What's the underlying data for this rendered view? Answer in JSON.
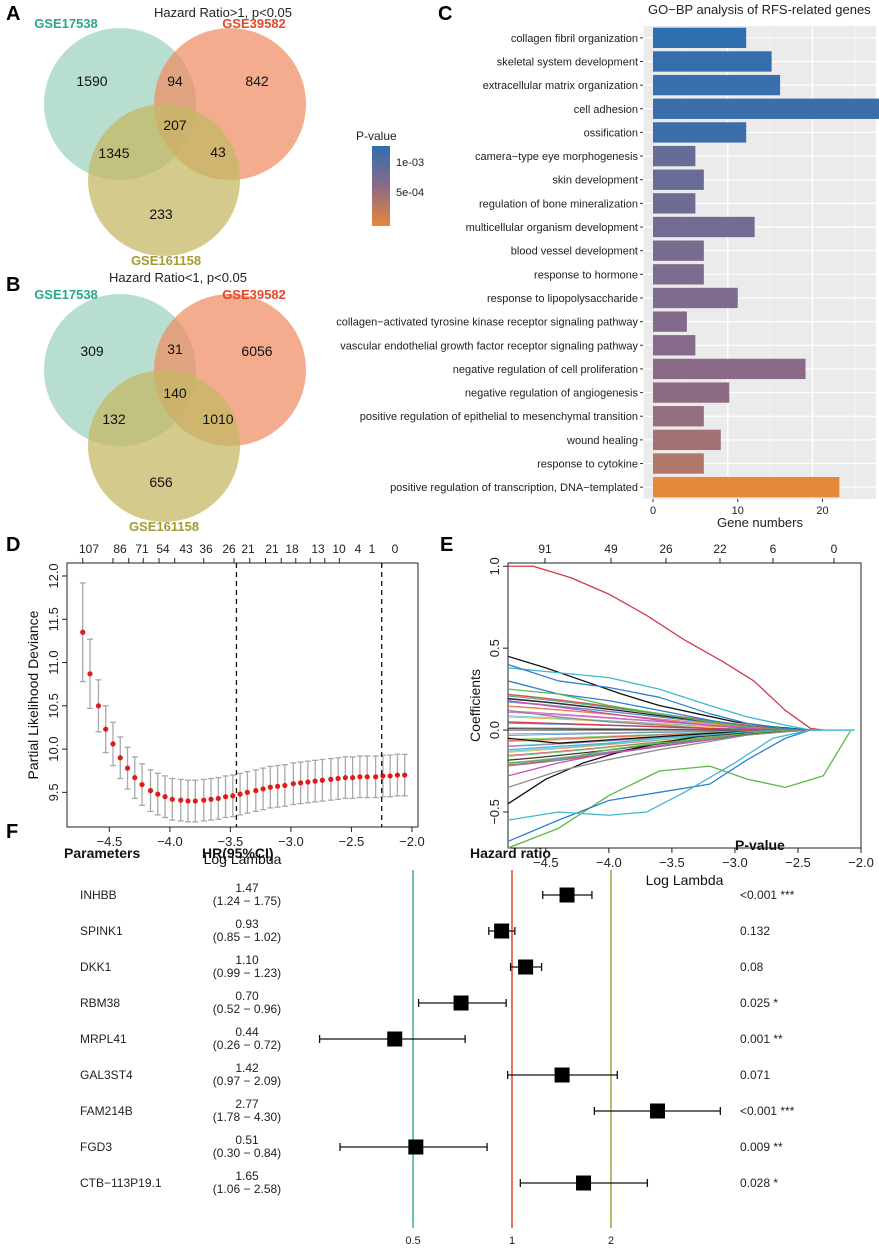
{
  "panel_labels": [
    "A",
    "B",
    "C",
    "D",
    "E",
    "F"
  ],
  "colors": {
    "set1": "#9fd3be",
    "set2": "#ef8c63",
    "set3": "#c4b864",
    "set1_text": "#2ba88a",
    "set2_text": "#e2472a",
    "set3_text": "#a39c30",
    "pval_low": "#2f6fb0",
    "pval_high": "#e6883a",
    "lambda_point": "#e01b1b",
    "forest_green": "#3eae88",
    "forest_red": "#e0472b",
    "forest_olive": "#a7a23a"
  },
  "chart_data": [
    {
      "id": "A",
      "type": "venn",
      "title": "Hazard Ratio>1, p<0.05",
      "sets": [
        "GSE17538",
        "GSE39582",
        "GSE161158"
      ],
      "regions": {
        "only1": "1590",
        "only2": "842",
        "only3": "233",
        "r12": "94",
        "r13": "1345",
        "r23": "43",
        "r123": "207"
      }
    },
    {
      "id": "B",
      "type": "venn",
      "title": "Hazard Ratio<1, p<0.05",
      "sets": [
        "GSE17538",
        "GSE39582",
        "GSE161158"
      ],
      "regions": {
        "only1": "309",
        "only2": "6056",
        "only3": "656",
        "r12": "31",
        "r13": "132",
        "r23": "1010",
        "r123": "140"
      }
    },
    {
      "id": "C",
      "type": "bar",
      "title": "GO−BP analysis of RFS-related genes",
      "xlabel": "Gene numbers",
      "xlim": [
        0,
        27.5
      ],
      "xticks": [
        0,
        10,
        20
      ],
      "legend_title": "P-value",
      "legend_labels": [
        "1e-03",
        "5e-04"
      ],
      "categories": [
        "collagen fibril organization",
        "skeletal system development",
        "extracellular matrix organization",
        "cell adhesion",
        "ossification",
        "camera−type eye morphogenesis",
        "skin development",
        "regulation of bone mineralization",
        "multicellular organism development",
        "blood vessel development",
        "response to hormone",
        "response to lipopolysaccharide",
        "collagen−activated tyrosine kinase receptor signaling pathway",
        "vascular endothelial growth factor receptor signaling pathway",
        "negative regulation of cell proliferation",
        "negative regulation of angiogenesis",
        "positive regulation of epithelial to mesenchymal transition",
        "wound healing",
        "response to cytokine",
        "positive regulation of transcription, DNA−templated"
      ],
      "values": [
        11,
        14,
        15,
        27,
        11,
        5,
        6,
        5,
        12,
        6,
        6,
        10,
        4,
        5,
        18,
        9,
        6,
        8,
        6,
        22
      ],
      "pvalue_color_t": [
        0.0,
        0.02,
        0.05,
        0.06,
        0.08,
        0.3,
        0.32,
        0.35,
        0.38,
        0.4,
        0.42,
        0.44,
        0.46,
        0.48,
        0.5,
        0.52,
        0.56,
        0.62,
        0.7,
        1.0
      ]
    },
    {
      "id": "D",
      "type": "scatter",
      "xlabel": "Log Lambda",
      "ylabel": "Partial Likelihood Deviance",
      "xlim": [
        -4.85,
        -1.95
      ],
      "ylim": [
        9.1,
        12.15
      ],
      "xticks": [
        -4.5,
        -4.0,
        -3.5,
        -3.0,
        -2.5,
        -2.0
      ],
      "xtick_labels": [
        "−4.5",
        "−4.0",
        "−3.5",
        "−3.0",
        "−2.5",
        "−2.0"
      ],
      "yticks": [
        9.5,
        10.0,
        10.5,
        11.0,
        11.5,
        12.0
      ],
      "ytick_labels": [
        "9.5",
        "10.0",
        "10.5",
        "11.0",
        "11.5",
        "12.0"
      ],
      "top_ticks": [
        -4.72,
        -4.47,
        -4.35,
        -4.23,
        -4.1,
        -3.97,
        -3.85,
        -3.72,
        -3.58,
        -3.45,
        -3.33,
        -3.21,
        -3.09,
        -2.97,
        -2.85,
        -2.73,
        -2.61,
        -2.49,
        -2.37,
        -2.25,
        -2.13,
        -2.06
      ],
      "top_positions": [
        -4.72,
        -4.47,
        -4.23,
        -3.97,
        -3.72,
        -3.47,
        -3.21,
        -2.97,
        -2.73,
        -2.49,
        -2.25,
        -2.06
      ],
      "top_labels": [
        "107",
        "86",
        "71",
        "54",
        "43",
        "36",
        "26",
        "21",
        "21",
        "18",
        "13",
        "10",
        "4",
        "1",
        "0"
      ],
      "top_label_x": [
        -4.72,
        -4.47,
        -4.34,
        -4.22,
        -4.09,
        -3.96,
        -3.72,
        -3.47,
        -3.34,
        -3.21,
        -3.08,
        -2.96,
        -2.84,
        -2.72,
        -2.6
      ],
      "vlines": [
        -3.45,
        -2.25
      ],
      "x": [
        -4.72,
        -4.66,
        -4.59,
        -4.53,
        -4.47,
        -4.41,
        -4.35,
        -4.29,
        -4.23,
        -4.16,
        -4.1,
        -4.04,
        -3.98,
        -3.91,
        -3.85,
        -3.79,
        -3.72,
        -3.66,
        -3.6,
        -3.54,
        -3.48,
        -3.42,
        -3.36,
        -3.29,
        -3.23,
        -3.17,
        -3.11,
        -3.05,
        -2.98,
        -2.92,
        -2.86,
        -2.8,
        -2.74,
        -2.67,
        -2.61,
        -2.55,
        -2.49,
        -2.43,
        -2.37,
        -2.3,
        -2.24,
        -2.18,
        -2.12,
        -2.06
      ],
      "y": [
        11.35,
        10.87,
        10.5,
        10.23,
        10.06,
        9.9,
        9.78,
        9.67,
        9.59,
        9.52,
        9.48,
        9.45,
        9.42,
        9.41,
        9.4,
        9.4,
        9.41,
        9.42,
        9.43,
        9.45,
        9.46,
        9.48,
        9.5,
        9.52,
        9.54,
        9.56,
        9.57,
        9.58,
        9.6,
        9.61,
        9.62,
        9.63,
        9.64,
        9.65,
        9.66,
        9.67,
        9.67,
        9.68,
        9.68,
        9.68,
        9.69,
        9.69,
        9.7,
        9.7
      ],
      "err": [
        0.57,
        0.4,
        0.3,
        0.27,
        0.25,
        0.24,
        0.24,
        0.24,
        0.24,
        0.24,
        0.24,
        0.24,
        0.24,
        0.24,
        0.24,
        0.24,
        0.24,
        0.24,
        0.24,
        0.24,
        0.24,
        0.24,
        0.24,
        0.24,
        0.24,
        0.24,
        0.24,
        0.24,
        0.24,
        0.24,
        0.24,
        0.24,
        0.24,
        0.24,
        0.24,
        0.24,
        0.24,
        0.24,
        0.24,
        0.24,
        0.24,
        0.24,
        0.24,
        0.24
      ]
    },
    {
      "id": "E",
      "type": "line",
      "xlabel": "Log Lambda",
      "ylabel": "Coefficients",
      "xlim": [
        -4.8,
        -2.0
      ],
      "ylim": [
        -0.72,
        1.02
      ],
      "xticks": [
        -4.5,
        -4.0,
        -3.5,
        -3.0,
        -2.5,
        -2.0
      ],
      "xtick_labels": [
        "−4.5",
        "−4.0",
        "−3.5",
        "−3.0",
        "−2.5",
        "−2.0"
      ],
      "yticks": [
        -0.5,
        0.0,
        0.5,
        1.0
      ],
      "ytick_labels": [
        "−0.5",
        "0.0",
        "0.5",
        "1.0"
      ],
      "top_positions": [
        -4.35,
        -3.95,
        -3.5,
        -3.08,
        -2.65,
        -2.3
      ],
      "top_labels": [
        "91",
        "49",
        "26",
        "22",
        "6",
        "0"
      ],
      "series": [
        {
          "name": "path-red",
          "color": "#d33a4a",
          "x": [
            -4.8,
            -4.6,
            -4.3,
            -4.0,
            -3.7,
            -3.4,
            -3.1,
            -2.85,
            -2.6,
            -2.4,
            -2.3
          ],
          "y": [
            1.0,
            1.0,
            0.93,
            0.83,
            0.7,
            0.55,
            0.42,
            0.3,
            0.12,
            0.01,
            0.0
          ]
        },
        {
          "name": "path-green-long",
          "color": "#5cb84a",
          "x": [
            -4.8,
            -4.4,
            -4.0,
            -3.6,
            -3.2,
            -2.9,
            -2.6,
            -2.3,
            -2.08
          ],
          "y": [
            -0.72,
            -0.6,
            -0.4,
            -0.25,
            -0.22,
            -0.3,
            -0.35,
            -0.28,
            0.0
          ]
        },
        {
          "name": "path-blue-1",
          "color": "#2e7fd0",
          "x": [
            -4.8,
            -4.4,
            -4.0,
            -3.6,
            -3.2,
            -2.9,
            -2.6,
            -2.4
          ],
          "y": [
            -0.68,
            -0.55,
            -0.43,
            -0.38,
            -0.33,
            -0.18,
            -0.05,
            0.0
          ]
        },
        {
          "name": "path-cyan-1",
          "color": "#3fb9cf",
          "x": [
            -4.8,
            -4.4,
            -4.0,
            -3.7,
            -3.4,
            -3.0,
            -2.7,
            -2.4
          ],
          "y": [
            -0.55,
            -0.5,
            -0.52,
            -0.5,
            -0.38,
            -0.2,
            -0.05,
            0.0
          ]
        },
        {
          "name": "path-black-1",
          "color": "#111111",
          "x": [
            -4.8,
            -4.5,
            -4.2,
            -3.9,
            -3.6,
            -3.3,
            -3.0,
            -2.7,
            -2.4
          ],
          "y": [
            -0.45,
            -0.3,
            -0.2,
            -0.13,
            -0.08,
            -0.04,
            -0.02,
            -0.01,
            0.0
          ]
        },
        {
          "name": "path-black-2",
          "color": "#111111",
          "x": [
            -4.8,
            -4.5,
            -4.2,
            -3.9,
            -3.6,
            -3.3,
            -3.0,
            -2.7,
            -2.4
          ],
          "y": [
            0.45,
            0.38,
            0.3,
            0.22,
            0.15,
            0.1,
            0.05,
            0.02,
            0.0
          ]
        },
        {
          "name": "path-cyan-2",
          "color": "#3fb9cf",
          "x": [
            -4.8,
            -4.4,
            -4.0,
            -3.6,
            -3.2,
            -2.9,
            -2.6,
            -2.4,
            -2.05
          ],
          "y": [
            0.38,
            0.35,
            0.32,
            0.25,
            0.15,
            0.08,
            0.03,
            0.0,
            0.0
          ]
        },
        {
          "name": "path-blue-2",
          "color": "#2e7fd0",
          "x": [
            -4.8,
            -4.4,
            -4.0,
            -3.6,
            -3.2,
            -2.9,
            -2.6,
            -2.4
          ],
          "y": [
            0.3,
            0.22,
            0.18,
            0.12,
            0.06,
            0.02,
            0.0,
            0.0
          ]
        },
        {
          "name": "path-green-2",
          "color": "#5cb84a",
          "x": [
            -4.8,
            -4.4,
            -4.0,
            -3.6,
            -3.2,
            -2.9,
            -2.6,
            -2.4
          ],
          "y": [
            0.25,
            0.22,
            0.15,
            0.1,
            0.05,
            0.02,
            0.0,
            0.0
          ]
        },
        {
          "name": "path-magenta-1",
          "color": "#c94fb6",
          "x": [
            -4.8,
            -4.4,
            -4.0,
            -3.6,
            -3.2,
            -2.9,
            -2.6,
            -2.4
          ],
          "y": [
            0.18,
            0.14,
            0.1,
            0.06,
            0.03,
            0.01,
            0.0,
            0.0
          ]
        },
        {
          "name": "path-gray-1",
          "color": "#8a8a8a",
          "x": [
            -4.8,
            -4.4,
            -4.0,
            -3.6,
            -3.2,
            -2.9,
            -2.6,
            -2.4
          ],
          "y": [
            0.12,
            0.08,
            0.05,
            0.03,
            0.01,
            0.0,
            0.0,
            0.0
          ]
        },
        {
          "name": "path-red-2",
          "color": "#d33a4a",
          "x": [
            -4.8,
            -4.4,
            -4.0,
            -3.6,
            -3.2,
            -2.9,
            -2.6,
            -2.4
          ],
          "y": [
            0.05,
            0.04,
            0.03,
            0.02,
            0.01,
            0.0,
            0.0,
            0.0
          ]
        },
        {
          "name": "path-black-3",
          "color": "#111111",
          "x": [
            -4.8,
            -4.4,
            -4.0,
            -3.6,
            -3.2,
            -2.9,
            -2.6,
            -2.4
          ],
          "y": [
            -0.05,
            -0.08,
            -0.06,
            -0.04,
            -0.02,
            -0.01,
            0.0,
            0.0
          ]
        },
        {
          "name": "path-cyan-3",
          "color": "#3fb9cf",
          "x": [
            -4.8,
            -4.4,
            -4.0,
            -3.6,
            -3.2,
            -2.9,
            -2.6,
            -2.4
          ],
          "y": [
            -0.12,
            -0.1,
            -0.08,
            -0.05,
            -0.03,
            -0.01,
            0.0,
            0.0
          ]
        },
        {
          "name": "path-green-3",
          "color": "#5cb84a",
          "x": [
            -4.8,
            -4.4,
            -4.0,
            -3.6,
            -3.2,
            -2.9,
            -2.6,
            -2.4
          ],
          "y": [
            -0.2,
            -0.18,
            -0.12,
            -0.08,
            -0.05,
            -0.02,
            0.0,
            0.0
          ]
        },
        {
          "name": "path-magenta-2",
          "color": "#c94fb6",
          "x": [
            -4.8,
            -4.4,
            -4.0,
            -3.6,
            -3.2,
            -2.9,
            -2.6,
            -2.4
          ],
          "y": [
            -0.28,
            -0.2,
            -0.14,
            -0.1,
            -0.06,
            -0.03,
            -0.01,
            0.0
          ]
        },
        {
          "name": "path-gray-2",
          "color": "#8a8a8a",
          "x": [
            -4.8,
            -4.4,
            -4.0,
            -3.6,
            -3.2,
            -2.9,
            -2.6,
            -2.4
          ],
          "y": [
            -0.35,
            -0.25,
            -0.18,
            -0.12,
            -0.07,
            -0.03,
            -0.01,
            0.0
          ]
        },
        {
          "name": "path-blue-3",
          "color": "#2e7fd0",
          "x": [
            -4.8,
            -4.4,
            -4.0,
            -3.6,
            -3.2,
            -2.9,
            -2.6,
            -2.4
          ],
          "y": [
            0.4,
            0.3,
            0.26,
            0.2,
            0.1,
            0.04,
            0.01,
            0.0
          ]
        }
      ]
    },
    {
      "id": "F",
      "type": "forest",
      "headers": {
        "parameters": "Parameters",
        "hr": "HR(95%CI)",
        "plot": "Hazard ratio",
        "pvalue": "P-value"
      },
      "xticks": [
        0.5,
        1,
        2
      ],
      "xtick_labels": [
        "0.5",
        "1",
        "2"
      ],
      "rows": [
        {
          "name": "INHBB",
          "hr": 1.47,
          "lo": 1.24,
          "hi": 1.75,
          "hr_text": "1.47",
          "ci_text": "(1.24 − 1.75)",
          "p_text": "<0.001 ***"
        },
        {
          "name": "SPINK1",
          "hr": 0.93,
          "lo": 0.85,
          "hi": 1.02,
          "hr_text": "0.93",
          "ci_text": "(0.85 − 1.02)",
          "p_text": "0.132"
        },
        {
          "name": "DKK1",
          "hr": 1.1,
          "lo": 0.99,
          "hi": 1.23,
          "hr_text": "1.10",
          "ci_text": "(0.99 − 1.23)",
          "p_text": "0.08"
        },
        {
          "name": "RBM38",
          "hr": 0.7,
          "lo": 0.52,
          "hi": 0.96,
          "hr_text": "0.70",
          "ci_text": "(0.52 − 0.96)",
          "p_text": "0.025 *"
        },
        {
          "name": "MRPL41",
          "hr": 0.44,
          "lo": 0.26,
          "hi": 0.72,
          "hr_text": "0.44",
          "ci_text": "(0.26 − 0.72)",
          "p_text": "0.001 **"
        },
        {
          "name": "GAL3ST4",
          "hr": 1.42,
          "lo": 0.97,
          "hi": 2.09,
          "hr_text": "1.42",
          "ci_text": "(0.97 − 2.09)",
          "p_text": "0.071"
        },
        {
          "name": "FAM214B",
          "hr": 2.77,
          "lo": 1.78,
          "hi": 4.3,
          "hr_text": "2.77",
          "ci_text": "(1.78 − 4.30)",
          "p_text": "<0.001 ***"
        },
        {
          "name": "FGD3",
          "hr": 0.51,
          "lo": 0.3,
          "hi": 0.84,
          "hr_text": "0.51",
          "ci_text": "(0.30 − 0.84)",
          "p_text": "0.009 **"
        },
        {
          "name": "CTB−113P19.1",
          "hr": 1.65,
          "lo": 1.06,
          "hi": 2.58,
          "hr_text": "1.65",
          "ci_text": "(1.06 − 2.58)",
          "p_text": "0.028 *"
        }
      ]
    }
  ]
}
